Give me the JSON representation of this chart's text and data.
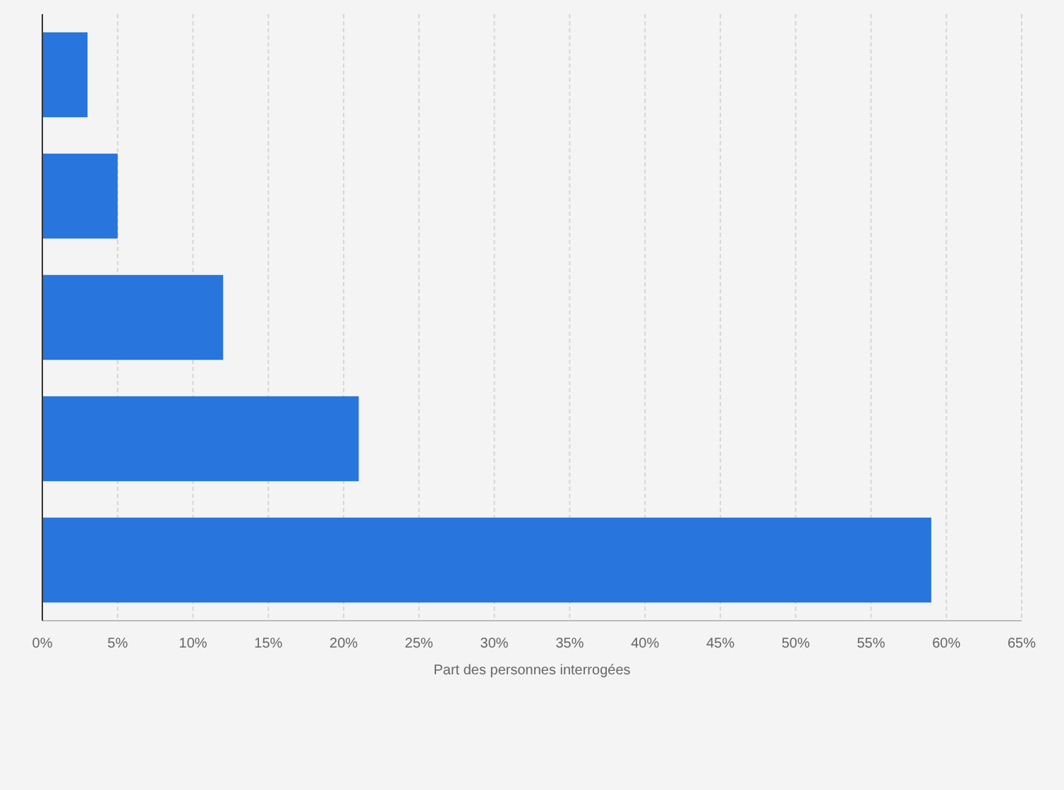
{
  "chart_data": {
    "type": "bar",
    "orientation": "horizontal",
    "xlabel": "Part des personnes interrogées",
    "categories": [
      null,
      null,
      null,
      null,
      null
    ],
    "values": [
      3,
      5,
      12,
      21,
      59
    ],
    "color": "#2775dd",
    "xlim": [
      0,
      65
    ],
    "xticks": [
      {
        "value": 0,
        "label": "0%"
      },
      {
        "value": 5,
        "label": "5%"
      },
      {
        "value": 10,
        "label": "10%"
      },
      {
        "value": 15,
        "label": "15%"
      },
      {
        "value": 20,
        "label": "20%"
      },
      {
        "value": 25,
        "label": "25%"
      },
      {
        "value": 30,
        "label": "30%"
      },
      {
        "value": 35,
        "label": "35%"
      },
      {
        "value": 40,
        "label": "40%"
      },
      {
        "value": 45,
        "label": "45%"
      },
      {
        "value": 50,
        "label": "50%"
      },
      {
        "value": 55,
        "label": "55%"
      },
      {
        "value": 60,
        "label": "60%"
      },
      {
        "value": 65,
        "label": "65%"
      }
    ],
    "grid": "x"
  }
}
